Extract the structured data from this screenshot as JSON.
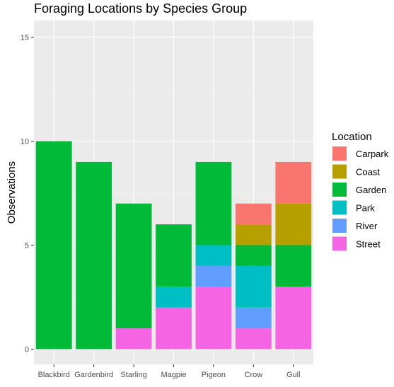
{
  "chart_data": {
    "type": "bar",
    "stacked": true,
    "title": "Foraging Locations by Species Group",
    "xlabel": "",
    "ylabel": "Observations",
    "ylim": [
      0,
      16
    ],
    "yticks": [
      0,
      5,
      10,
      15
    ],
    "grid": true,
    "legend_position": "right",
    "legend_title": "Location",
    "categories": [
      "Blackbird",
      "Gardenbird",
      "Starling",
      "Magpie",
      "Pigeon",
      "Crow",
      "Gull"
    ],
    "series": [
      {
        "name": "Carpark",
        "color": "#F8766D",
        "values": [
          0,
          0,
          0,
          0,
          0,
          1,
          2
        ]
      },
      {
        "name": "Coast",
        "color": "#B79F00",
        "values": [
          0,
          0,
          0,
          0,
          0,
          1,
          2
        ]
      },
      {
        "name": "Garden",
        "color": "#00BA38",
        "values": [
          10,
          9,
          6,
          3,
          4,
          1,
          2
        ]
      },
      {
        "name": "Park",
        "color": "#00BFC4",
        "values": [
          0,
          0,
          0,
          1,
          1,
          2,
          0
        ]
      },
      {
        "name": "River",
        "color": "#619CFF",
        "values": [
          0,
          0,
          0,
          0,
          1,
          1,
          0
        ]
      },
      {
        "name": "Street",
        "color": "#F564E3",
        "values": [
          0,
          0,
          1,
          2,
          3,
          1,
          3
        ]
      }
    ]
  }
}
